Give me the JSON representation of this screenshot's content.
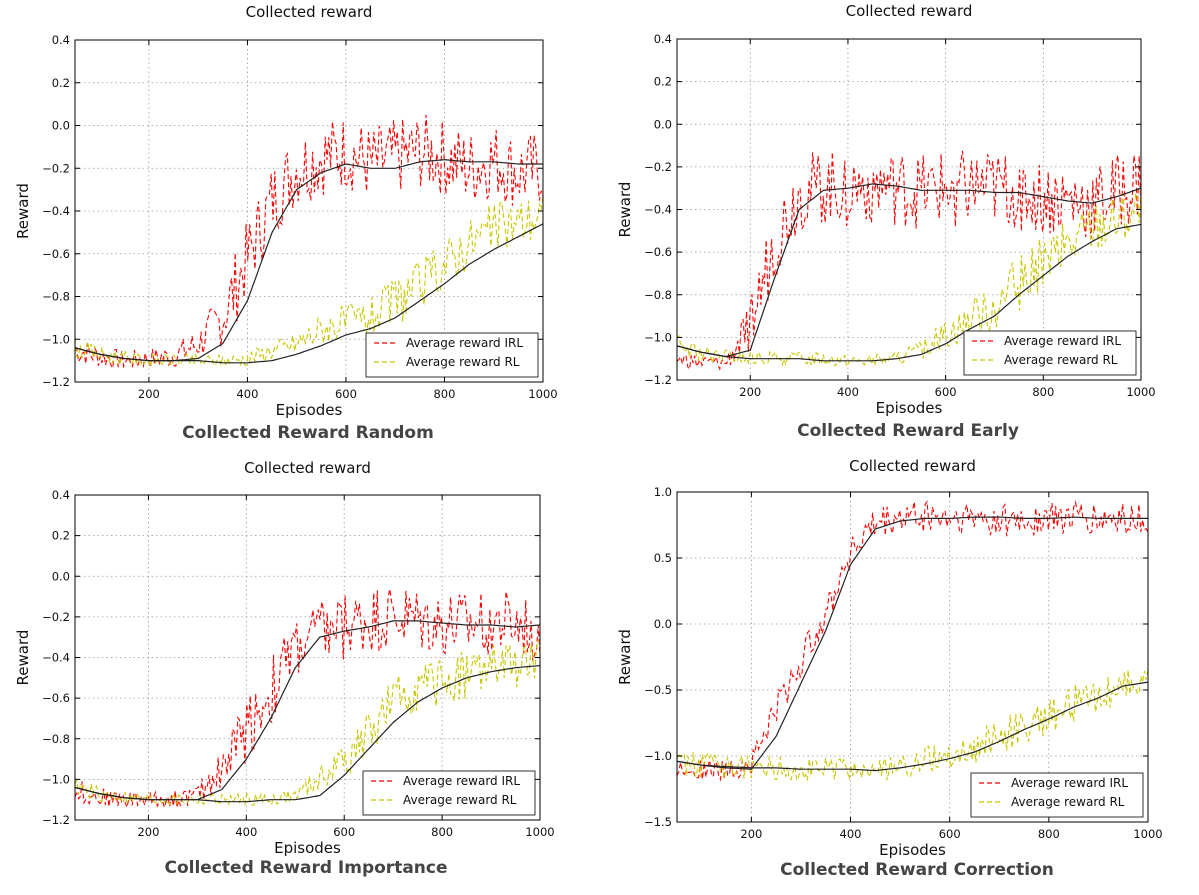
{
  "chart_data": [
    {
      "type": "line",
      "title": "Collected reward",
      "caption": "Collected Reward Random",
      "xlabel": "Episodes",
      "ylabel": "Reward",
      "xlim": [
        50,
        1000
      ],
      "ylim": [
        -1.2,
        0.4
      ],
      "xticks": [
        200,
        400,
        600,
        800,
        1000
      ],
      "xtick_labels": [
        "200",
        "400",
        "600",
        "800",
        "1000"
      ],
      "yticks": [
        -1.2,
        -1.0,
        -0.8,
        -0.6,
        -0.4,
        -0.2,
        0.0,
        0.2,
        0.4
      ],
      "ytick_labels": [
        "−1.2",
        "−1.0",
        "−0.8",
        "−0.6",
        "−0.4",
        "−0.2",
        "0.0",
        "0.2",
        "0.4"
      ],
      "grid": true,
      "legend_position": "bottom-right",
      "series": [
        {
          "name": "Average reward IRL",
          "color": "#ff0000",
          "style": "dashed",
          "x": [
            50,
            100,
            150,
            200,
            250,
            300,
            350,
            400,
            450,
            500,
            550,
            600,
            650,
            700,
            750,
            800,
            850,
            900,
            950,
            1000
          ],
          "y": [
            -1.05,
            -1.08,
            -1.1,
            -1.09,
            -1.08,
            -1.02,
            -0.9,
            -0.62,
            -0.35,
            -0.2,
            -0.15,
            -0.12,
            -0.18,
            -0.15,
            -0.12,
            -0.15,
            -0.2,
            -0.16,
            -0.22,
            -0.2
          ],
          "noise": 0.18
        },
        {
          "name": "Average reward RL",
          "color": "#c8c800",
          "style": "dashed",
          "x": [
            50,
            100,
            150,
            200,
            250,
            300,
            350,
            400,
            450,
            500,
            550,
            600,
            650,
            700,
            750,
            800,
            850,
            900,
            950,
            1000
          ],
          "y": [
            -1.04,
            -1.07,
            -1.09,
            -1.1,
            -1.1,
            -1.1,
            -1.1,
            -1.09,
            -1.05,
            -1.02,
            -0.95,
            -0.92,
            -0.9,
            -0.82,
            -0.75,
            -0.65,
            -0.55,
            -0.48,
            -0.45,
            -0.42
          ],
          "noise": 0.12
        },
        {
          "name": "",
          "color": "#222222",
          "style": "solid",
          "x": [
            50,
            100,
            150,
            200,
            250,
            300,
            350,
            400,
            450,
            500,
            550,
            600,
            650,
            700,
            750,
            800,
            850,
            900,
            950,
            1000
          ],
          "y": [
            -1.04,
            -1.07,
            -1.09,
            -1.1,
            -1.1,
            -1.09,
            -1.02,
            -0.82,
            -0.5,
            -0.3,
            -0.22,
            -0.18,
            -0.2,
            -0.2,
            -0.17,
            -0.16,
            -0.17,
            -0.17,
            -0.18,
            -0.18
          ],
          "noise": 0
        },
        {
          "name": "",
          "color": "#222222",
          "style": "solid",
          "x": [
            50,
            100,
            150,
            200,
            250,
            300,
            350,
            400,
            450,
            500,
            550,
            600,
            650,
            700,
            750,
            800,
            850,
            900,
            950,
            1000
          ],
          "y": [
            -1.04,
            -1.07,
            -1.09,
            -1.1,
            -1.1,
            -1.1,
            -1.11,
            -1.11,
            -1.1,
            -1.07,
            -1.03,
            -0.98,
            -0.95,
            -0.9,
            -0.82,
            -0.74,
            -0.65,
            -0.58,
            -0.52,
            -0.46
          ],
          "noise": 0
        }
      ]
    },
    {
      "type": "line",
      "title": "Collected reward",
      "caption": "Collected Reward Early",
      "xlabel": "Episodes",
      "ylabel": "Reward",
      "xlim": [
        50,
        1000
      ],
      "ylim": [
        -1.2,
        0.4
      ],
      "xticks": [
        200,
        400,
        600,
        800,
        1000
      ],
      "xtick_labels": [
        "200",
        "400",
        "600",
        "800",
        "1000"
      ],
      "yticks": [
        -1.2,
        -1.0,
        -0.8,
        -0.6,
        -0.4,
        -0.2,
        0.0,
        0.2,
        0.4
      ],
      "ytick_labels": [
        "−1.2",
        "−1.0",
        "−0.8",
        "−0.6",
        "−0.4",
        "−0.2",
        "0.0",
        "0.2",
        "0.4"
      ],
      "grid": true,
      "legend_position": "bottom-right",
      "series": [
        {
          "name": "Average reward IRL",
          "color": "#ff0000",
          "style": "dashed",
          "x": [
            50,
            100,
            150,
            200,
            250,
            300,
            350,
            400,
            450,
            500,
            550,
            600,
            650,
            700,
            750,
            800,
            850,
            900,
            950,
            1000
          ],
          "y": [
            -1.1,
            -1.12,
            -1.12,
            -0.95,
            -0.55,
            -0.32,
            -0.3,
            -0.3,
            -0.28,
            -0.3,
            -0.32,
            -0.3,
            -0.3,
            -0.3,
            -0.32,
            -0.35,
            -0.36,
            -0.38,
            -0.32,
            -0.28
          ],
          "noise": 0.18
        },
        {
          "name": "Average reward RL",
          "color": "#c8c800",
          "style": "dashed",
          "x": [
            50,
            100,
            150,
            200,
            250,
            300,
            350,
            400,
            450,
            500,
            550,
            600,
            650,
            700,
            750,
            800,
            850,
            900,
            950,
            1000
          ],
          "y": [
            -1.04,
            -1.08,
            -1.09,
            -1.1,
            -1.1,
            -1.1,
            -1.1,
            -1.11,
            -1.11,
            -1.1,
            -1.06,
            -0.98,
            -0.92,
            -0.85,
            -0.75,
            -0.65,
            -0.58,
            -0.48,
            -0.45,
            -0.4
          ],
          "noise": 0.13
        },
        {
          "name": "",
          "color": "#222222",
          "style": "solid",
          "x": [
            50,
            100,
            150,
            200,
            250,
            300,
            350,
            400,
            450,
            500,
            550,
            600,
            650,
            700,
            750,
            800,
            850,
            900,
            950,
            1000
          ],
          "y": [
            -1.04,
            -1.07,
            -1.09,
            -1.06,
            -0.72,
            -0.4,
            -0.31,
            -0.3,
            -0.28,
            -0.29,
            -0.31,
            -0.31,
            -0.31,
            -0.32,
            -0.32,
            -0.34,
            -0.36,
            -0.37,
            -0.34,
            -0.3
          ],
          "noise": 0
        },
        {
          "name": "",
          "color": "#222222",
          "style": "solid",
          "x": [
            50,
            100,
            150,
            200,
            250,
            300,
            350,
            400,
            450,
            500,
            550,
            600,
            650,
            700,
            750,
            800,
            850,
            900,
            950,
            1000
          ],
          "y": [
            -1.04,
            -1.07,
            -1.09,
            -1.1,
            -1.1,
            -1.1,
            -1.11,
            -1.11,
            -1.11,
            -1.1,
            -1.08,
            -1.03,
            -0.96,
            -0.9,
            -0.8,
            -0.71,
            -0.62,
            -0.55,
            -0.49,
            -0.47
          ],
          "noise": 0
        }
      ]
    },
    {
      "type": "line",
      "title": "Collected reward",
      "caption": "Collected Reward Importance",
      "xlabel": "Episodes",
      "ylabel": "Reward",
      "xlim": [
        50,
        1000
      ],
      "ylim": [
        -1.2,
        0.4
      ],
      "xticks": [
        200,
        400,
        600,
        800,
        1000
      ],
      "xtick_labels": [
        "200",
        "400",
        "600",
        "800",
        "1000"
      ],
      "yticks": [
        -1.2,
        -1.0,
        -0.8,
        -0.6,
        -0.4,
        -0.2,
        0.0,
        0.2,
        0.4
      ],
      "ytick_labels": [
        "−1.2",
        "−1.0",
        "−0.8",
        "−0.6",
        "−0.4",
        "−0.2",
        "0.0",
        "0.2",
        "0.4"
      ],
      "grid": true,
      "legend_position": "bottom-right",
      "series": [
        {
          "name": "Average reward IRL",
          "color": "#ff0000",
          "style": "dashed",
          "x": [
            50,
            100,
            150,
            200,
            250,
            300,
            350,
            400,
            450,
            500,
            550,
            600,
            650,
            700,
            750,
            800,
            850,
            900,
            950,
            1000
          ],
          "y": [
            -1.05,
            -1.09,
            -1.1,
            -1.1,
            -1.1,
            -1.08,
            -0.95,
            -0.75,
            -0.58,
            -0.35,
            -0.28,
            -0.25,
            -0.22,
            -0.2,
            -0.22,
            -0.24,
            -0.25,
            -0.22,
            -0.25,
            -0.25
          ],
          "noise": 0.17
        },
        {
          "name": "Average reward RL",
          "color": "#c8c800",
          "style": "dashed",
          "x": [
            50,
            100,
            150,
            200,
            250,
            300,
            350,
            400,
            450,
            500,
            550,
            600,
            650,
            700,
            750,
            800,
            850,
            900,
            950,
            1000
          ],
          "y": [
            -1.04,
            -1.07,
            -1.09,
            -1.1,
            -1.1,
            -1.1,
            -1.1,
            -1.1,
            -1.1,
            -1.08,
            -1.0,
            -0.9,
            -0.78,
            -0.62,
            -0.55,
            -0.52,
            -0.48,
            -0.45,
            -0.44,
            -0.42
          ],
          "noise": 0.12
        },
        {
          "name": "",
          "color": "#222222",
          "style": "solid",
          "x": [
            50,
            100,
            150,
            200,
            250,
            300,
            350,
            400,
            450,
            500,
            550,
            600,
            650,
            700,
            750,
            800,
            850,
            900,
            950,
            1000
          ],
          "y": [
            -1.04,
            -1.07,
            -1.09,
            -1.1,
            -1.1,
            -1.1,
            -1.05,
            -0.9,
            -0.7,
            -0.45,
            -0.3,
            -0.27,
            -0.25,
            -0.22,
            -0.22,
            -0.23,
            -0.24,
            -0.24,
            -0.25,
            -0.24
          ],
          "noise": 0
        },
        {
          "name": "",
          "color": "#222222",
          "style": "solid",
          "x": [
            50,
            100,
            150,
            200,
            250,
            300,
            350,
            400,
            450,
            500,
            550,
            600,
            650,
            700,
            750,
            800,
            850,
            900,
            950,
            1000
          ],
          "y": [
            -1.04,
            -1.07,
            -1.09,
            -1.1,
            -1.1,
            -1.1,
            -1.11,
            -1.11,
            -1.1,
            -1.1,
            -1.08,
            -0.98,
            -0.85,
            -0.72,
            -0.62,
            -0.55,
            -0.5,
            -0.47,
            -0.45,
            -0.44
          ],
          "noise": 0
        }
      ]
    },
    {
      "type": "line",
      "title": "Collected reward",
      "caption": "Collected Reward Correction",
      "xlabel": "Episodes",
      "ylabel": "Reward",
      "xlim": [
        50,
        1000
      ],
      "ylim": [
        -1.5,
        1.0
      ],
      "xticks": [
        200,
        400,
        600,
        800,
        1000
      ],
      "xtick_labels": [
        "200",
        "400",
        "600",
        "800",
        "1000"
      ],
      "yticks": [
        -1.5,
        -1.0,
        -0.5,
        0.0,
        0.5,
        1.0
      ],
      "ytick_labels": [
        "−1.5",
        "−1.0",
        "−0.5",
        "0.0",
        "0.5",
        "1.0"
      ],
      "grid": true,
      "legend_position": "bottom-right",
      "series": [
        {
          "name": "Average reward IRL",
          "color": "#ff0000",
          "style": "dashed",
          "x": [
            50,
            100,
            150,
            200,
            250,
            300,
            350,
            400,
            450,
            500,
            550,
            600,
            650,
            700,
            750,
            800,
            850,
            900,
            950,
            1000
          ],
          "y": [
            -1.08,
            -1.1,
            -1.12,
            -1.05,
            -0.65,
            -0.3,
            0.1,
            0.55,
            0.75,
            0.8,
            0.82,
            0.8,
            0.8,
            0.8,
            0.78,
            0.8,
            0.8,
            0.78,
            0.8,
            0.8
          ],
          "noise": 0.13
        },
        {
          "name": "Average reward RL",
          "color": "#c8c800",
          "style": "dashed",
          "x": [
            50,
            100,
            150,
            200,
            250,
            300,
            350,
            400,
            450,
            500,
            550,
            600,
            650,
            700,
            750,
            800,
            850,
            900,
            950,
            1000
          ],
          "y": [
            -1.04,
            -1.07,
            -1.08,
            -1.09,
            -1.09,
            -1.1,
            -1.1,
            -1.1,
            -1.11,
            -1.08,
            -1.03,
            -1.0,
            -0.95,
            -0.85,
            -0.78,
            -0.7,
            -0.6,
            -0.55,
            -0.45,
            -0.45
          ],
          "noise": 0.14
        },
        {
          "name": "",
          "color": "#222222",
          "style": "solid",
          "x": [
            50,
            100,
            150,
            200,
            250,
            300,
            350,
            400,
            450,
            500,
            550,
            600,
            650,
            700,
            750,
            800,
            850,
            900,
            950,
            1000
          ],
          "y": [
            -1.04,
            -1.07,
            -1.09,
            -1.1,
            -0.85,
            -0.45,
            -0.05,
            0.45,
            0.72,
            0.78,
            0.8,
            0.8,
            0.81,
            0.81,
            0.8,
            0.8,
            0.81,
            0.8,
            0.8,
            0.8
          ],
          "noise": 0
        },
        {
          "name": "",
          "color": "#222222",
          "style": "solid",
          "x": [
            50,
            100,
            150,
            200,
            250,
            300,
            350,
            400,
            450,
            500,
            550,
            600,
            650,
            700,
            750,
            800,
            850,
            900,
            950,
            1000
          ],
          "y": [
            -1.04,
            -1.07,
            -1.08,
            -1.09,
            -1.09,
            -1.1,
            -1.1,
            -1.1,
            -1.11,
            -1.09,
            -1.06,
            -1.02,
            -0.97,
            -0.89,
            -0.8,
            -0.72,
            -0.63,
            -0.56,
            -0.47,
            -0.44
          ],
          "noise": 0
        }
      ]
    }
  ]
}
